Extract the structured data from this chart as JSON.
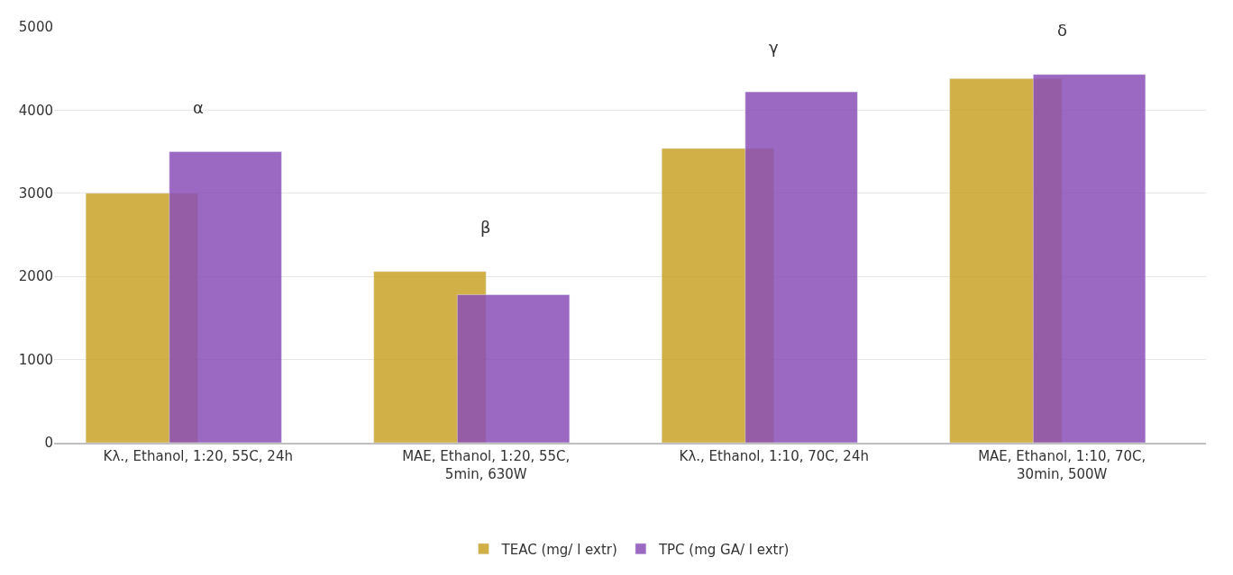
{
  "chart_data": {
    "type": "bar",
    "categories": [
      "Κλ., Ethanol, 1:20, 55C, 24h",
      "MAE, Ethanol, 1:20, 55C, 5min, 630W",
      "Κλ., Ethanol, 1:10, 70C, 24h",
      "MAE, Ethanol, 1:10, 70C, 30min, 500W"
    ],
    "series": [
      {
        "name": "TEAC (mg/ l extr)",
        "color": "#c9a227",
        "values": [
          3000,
          2060,
          3540,
          4380
        ]
      },
      {
        "name": "TPC (mg GA/ l extr)",
        "color": "#8a4fb8",
        "values": [
          3500,
          1780,
          4220,
          4430
        ]
      }
    ],
    "ylim": [
      0,
      5000
    ],
    "yticks": [
      0,
      1000,
      2000,
      3000,
      4000,
      5000
    ],
    "grid": "y",
    "legend": "bottom",
    "annotations": [
      "α",
      "β",
      "γ",
      "δ"
    ]
  }
}
